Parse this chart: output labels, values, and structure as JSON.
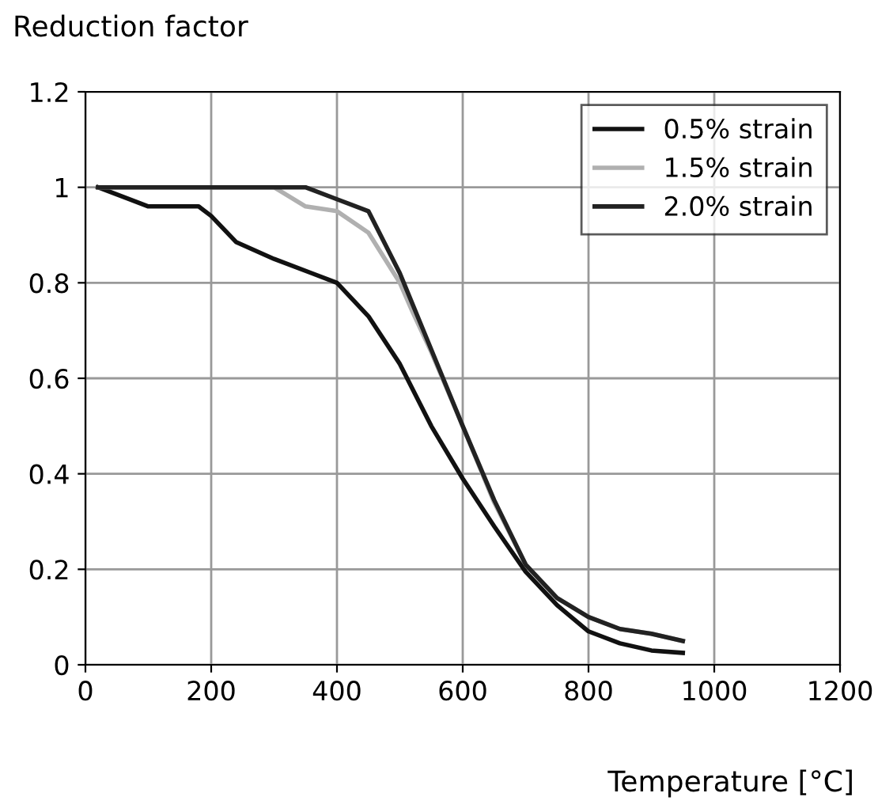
{
  "chart_data": {
    "type": "line",
    "ylabel": "Reduction factor",
    "xlabel": "Temperature [°C]",
    "xlim": [
      0,
      1200
    ],
    "xticks": [
      0,
      200,
      400,
      600,
      800,
      1000,
      1200
    ],
    "ylim": [
      0,
      1.2
    ],
    "yticks": [
      0,
      0.2,
      0.4,
      0.6,
      0.8,
      1,
      1.2
    ],
    "grid": true,
    "legend": "top right",
    "marker": "none",
    "line_style": "solid",
    "series": [
      {
        "name": "0.5% strain",
        "color": "#111111",
        "x": [
          20,
          100,
          180,
          200,
          240,
          300,
          360,
          400,
          450,
          500,
          550,
          600,
          650,
          700,
          750,
          800,
          850,
          900,
          950
        ],
        "values": [
          1,
          0.96,
          0.96,
          0.94,
          0.885,
          0.85,
          0.82,
          0.8,
          0.73,
          0.63,
          0.5,
          0.39,
          0.29,
          0.195,
          0.125,
          0.07,
          0.045,
          0.03,
          0.025
        ]
      },
      {
        "name": "1.5% strain",
        "color": "#b0b0b0",
        "x": [
          20,
          300,
          350,
          400,
          450,
          500,
          520,
          550,
          600,
          650,
          700,
          750,
          800,
          850,
          900,
          950
        ],
        "values": [
          1,
          1,
          0.96,
          0.95,
          0.905,
          0.8,
          0.74,
          0.655,
          0.5,
          0.34,
          0.21,
          0.14,
          0.1,
          0.075,
          0.065,
          0.05
        ]
      },
      {
        "name": "2.0% strain",
        "color": "#222222",
        "x": [
          20,
          350,
          400,
          450,
          500,
          550,
          600,
          650,
          700,
          750,
          800,
          850,
          900,
          950
        ],
        "values": [
          1,
          1,
          0.975,
          0.95,
          0.82,
          0.66,
          0.5,
          0.345,
          0.21,
          0.14,
          0.1,
          0.075,
          0.065,
          0.05
        ]
      }
    ]
  }
}
